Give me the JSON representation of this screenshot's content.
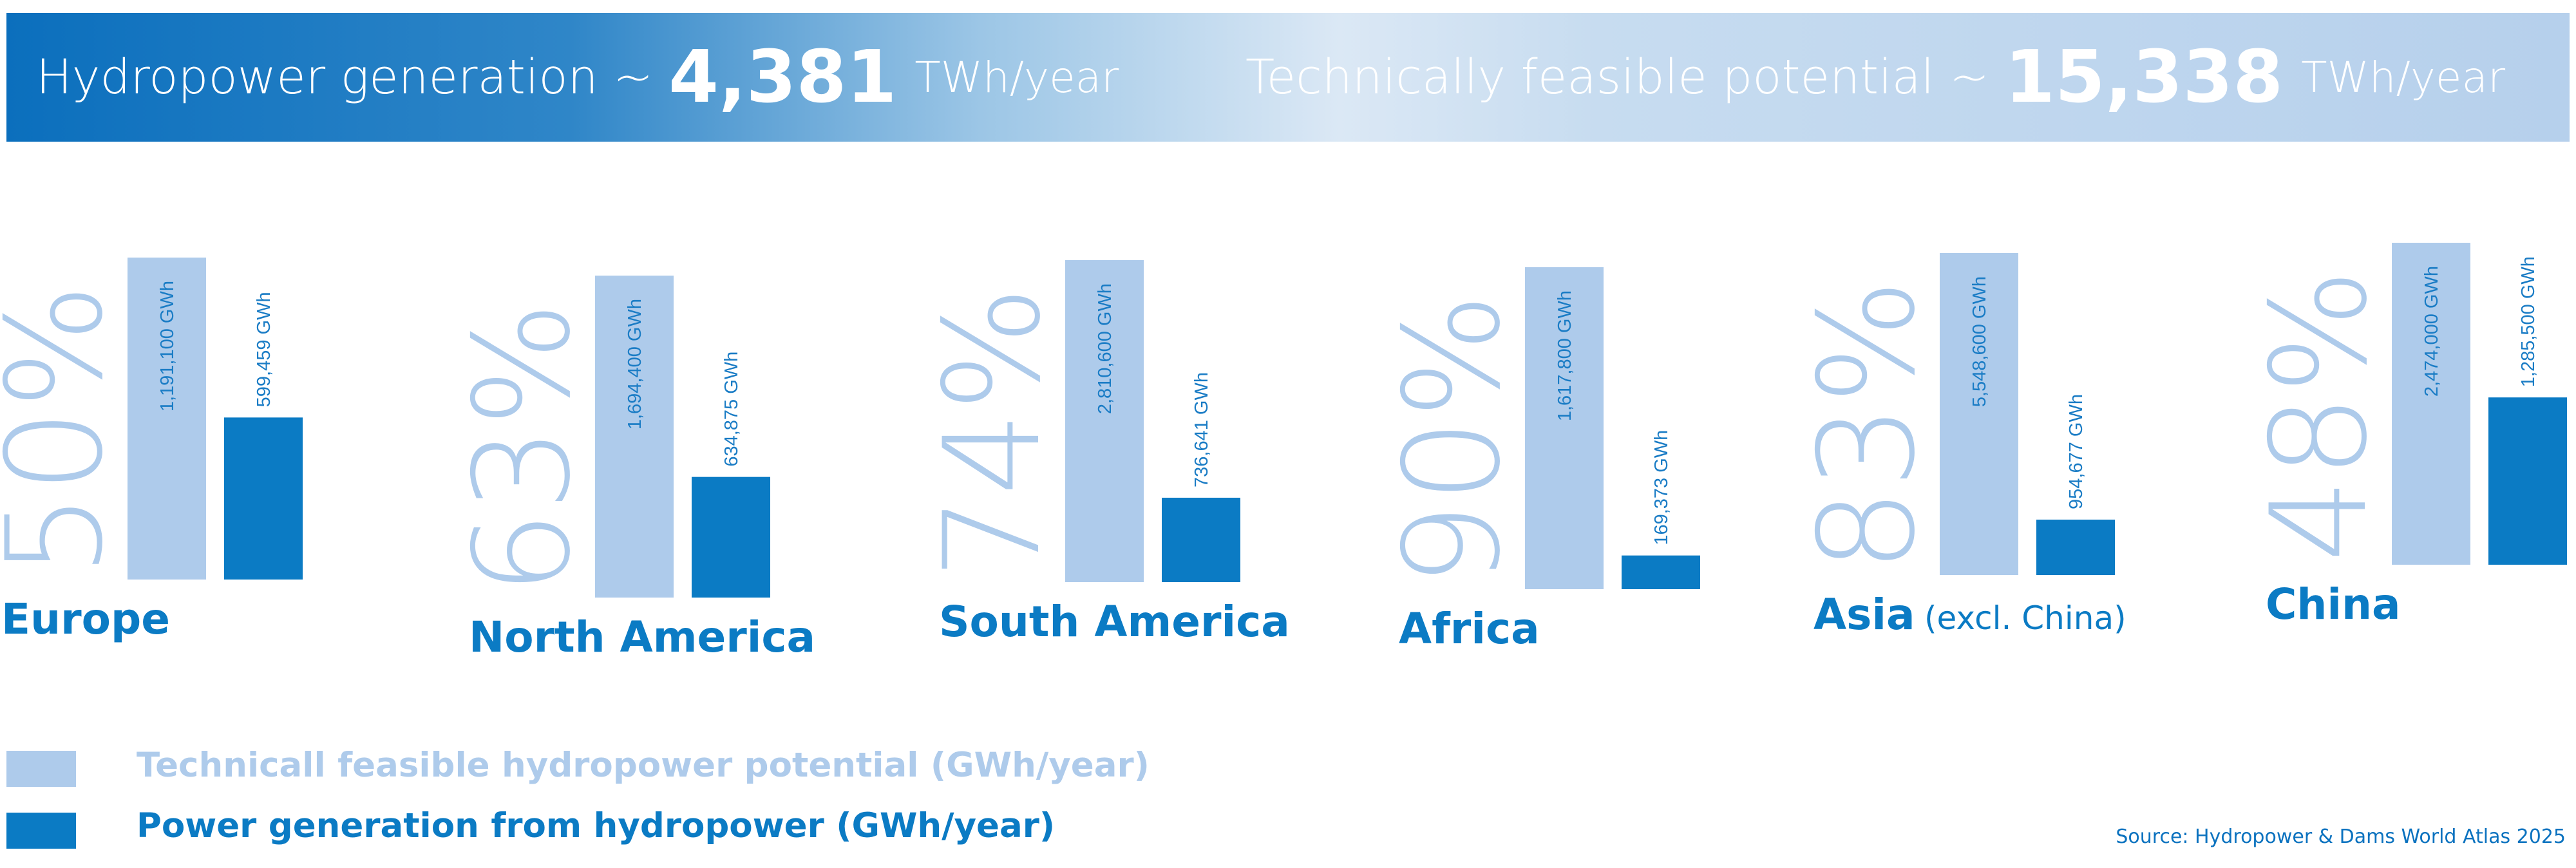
{
  "header": {
    "generation": {
      "label": "Hydropower generation ~",
      "value": "4,381",
      "unit": "TWh/year"
    },
    "potential": {
      "label": "Technically feasible potential ~",
      "value": "15,338",
      "unit": "TWh/year"
    }
  },
  "chart_data": {
    "type": "bar",
    "categories": [
      "Europe",
      "North America",
      "South America",
      "Africa",
      "Asia",
      "China"
    ],
    "category_notes": [
      "",
      "",
      "",
      "",
      "(excl. China)",
      ""
    ],
    "percent_labels": [
      "50%",
      "63%",
      "74%",
      "90%",
      "83%",
      "48%"
    ],
    "series": [
      {
        "name": "Technicall feasible hydropower potential (GWh/year)",
        "values": [
          1191100,
          1694400,
          2810600,
          1617800,
          5548600,
          2474000
        ],
        "labels": [
          "1,191,100 GWh",
          "1,694,400 GWh",
          "2,810,600 GWh",
          "1,617,800 GWh",
          "5,548,600 GWh",
          "2,474,000 GWh"
        ],
        "color": "#aecbeb"
      },
      {
        "name": "Power generation from hydropower (GWh/year)",
        "values": [
          599459,
          634875,
          736641,
          169373,
          954677,
          1285500
        ],
        "labels": [
          "599,459 GWh",
          "634,875 GWh",
          "736,641 GWh",
          "169,373 GWh",
          "954,677 GWh",
          "1,285,500 GWh"
        ],
        "color": "#0b7bc4"
      }
    ],
    "legend": "bottom-left"
  },
  "source": "Source: Hydropower & Dams World Atlas 2025"
}
